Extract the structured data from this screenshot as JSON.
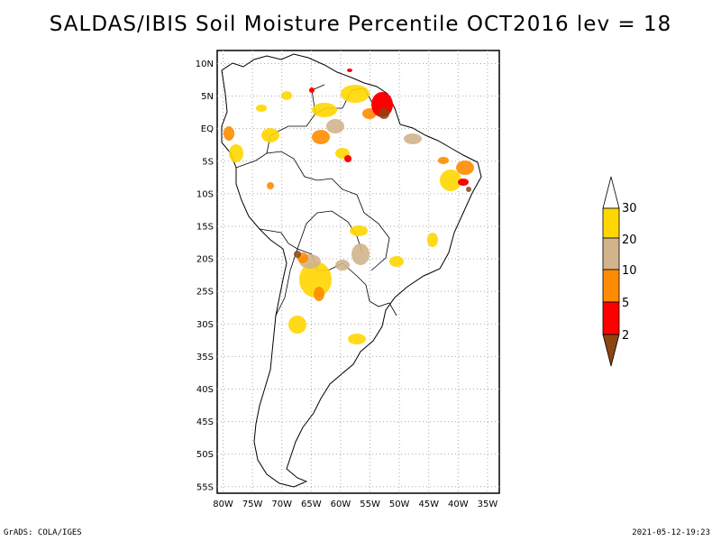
{
  "title": "SALDAS/IBIS Soil Moisture Percentile OCT2016 lev = 18",
  "map": {
    "lat_labels": [
      "10N",
      "5N",
      "EQ",
      "5S",
      "10S",
      "15S",
      "20S",
      "25S",
      "30S",
      "35S",
      "40S",
      "45S",
      "50S",
      "55S"
    ],
    "lat_values": [
      10,
      5,
      0,
      -5,
      -10,
      -15,
      -20,
      -25,
      -30,
      -35,
      -40,
      -45,
      -50,
      -55
    ],
    "lon_labels": [
      "80W",
      "75W",
      "70W",
      "65W",
      "60W",
      "55W",
      "50W",
      "45W",
      "40W",
      "35W"
    ],
    "lon_values": [
      -80,
      -75,
      -70,
      -65,
      -60,
      -55,
      -50,
      -45,
      -40,
      -35
    ],
    "lat_range": [
      -56,
      12
    ],
    "lon_range": [
      -81,
      -33
    ]
  },
  "legend": {
    "labels": [
      "30",
      "20",
      "10",
      "5",
      "2"
    ],
    "colors": {
      "above30": "#ffffff",
      "20-30": "#ffd700",
      "10-20": "#d2b48c",
      "5-10": "#ff8c00",
      "2-5": "#ff0000",
      "below2": "#8b4513"
    }
  },
  "footer": {
    "left": "GrADS: COLA/IGES",
    "right": "2021-05-12-19:23"
  }
}
